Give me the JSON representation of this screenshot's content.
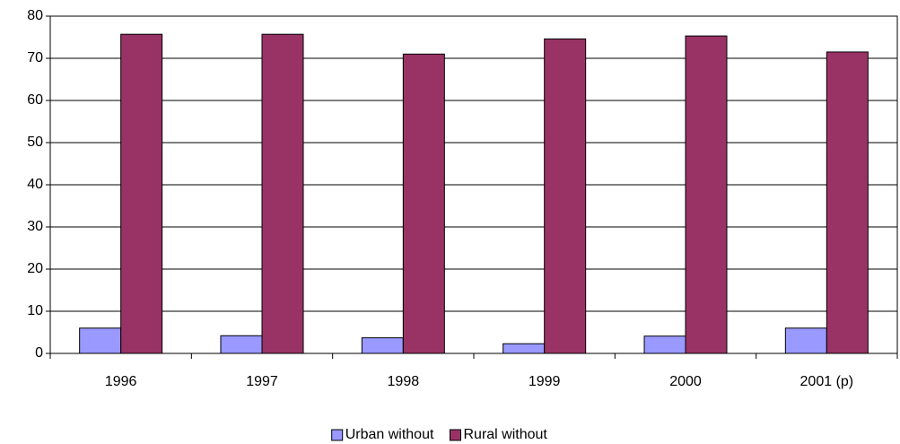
{
  "chart_data": {
    "type": "bar",
    "categories": [
      "1996",
      "1997",
      "1998",
      "1999",
      "2000",
      "2001 (p)"
    ],
    "series": [
      {
        "name": "Urban without",
        "color": "#9999ff",
        "values": [
          6,
          4.2,
          3.7,
          2.3,
          4.1,
          6
        ]
      },
      {
        "name": "Rural without",
        "color": "#993366",
        "values": [
          75.7,
          75.7,
          71,
          74.6,
          75.3,
          71.5
        ]
      }
    ],
    "ylim": [
      0,
      80
    ],
    "yticks": [
      0,
      10,
      20,
      30,
      40,
      50,
      60,
      70,
      80
    ],
    "grid": true,
    "legend": "bottom"
  }
}
